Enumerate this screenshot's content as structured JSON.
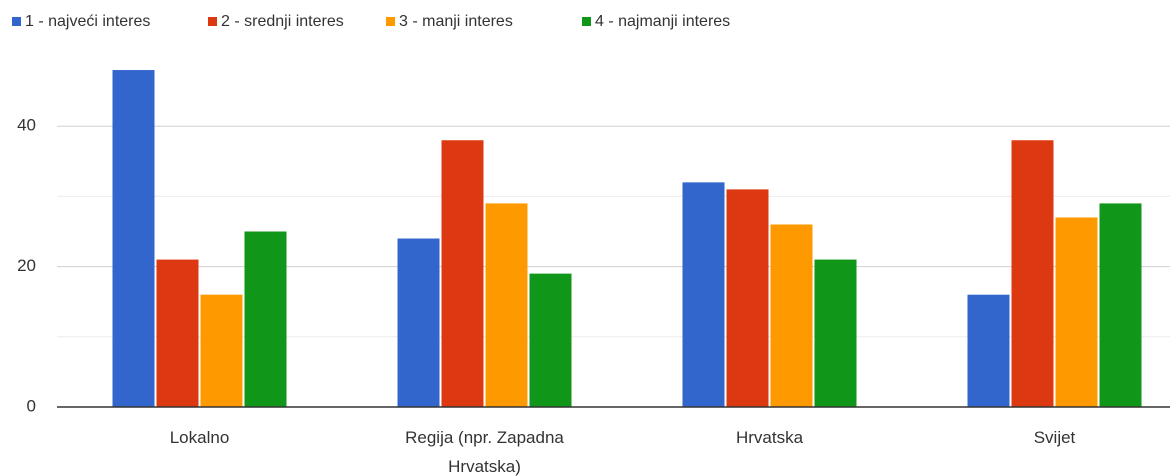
{
  "chart_data": {
    "type": "bar",
    "categories": [
      "Lokalno",
      "Regija (npr. Zapadna Hrvatska)",
      "Hrvatska",
      "Svijet"
    ],
    "series": [
      {
        "name": "1 - najveći interes",
        "color": "#3366cc",
        "values": [
          48,
          24,
          32,
          16
        ]
      },
      {
        "name": "2 - srednji interes",
        "color": "#dc3912",
        "values": [
          21,
          38,
          31,
          38
        ]
      },
      {
        "name": "3 - manji interes",
        "color": "#ff9900",
        "values": [
          16,
          29,
          26,
          27
        ]
      },
      {
        "name": "4 - najmanji interes",
        "color": "#109618",
        "values": [
          25,
          19,
          21,
          29
        ]
      }
    ],
    "ylim": [
      0,
      50
    ],
    "yticks": [
      0,
      20,
      40
    ],
    "minor_yticks": [
      10,
      30
    ],
    "grid": true,
    "legend": "top"
  }
}
